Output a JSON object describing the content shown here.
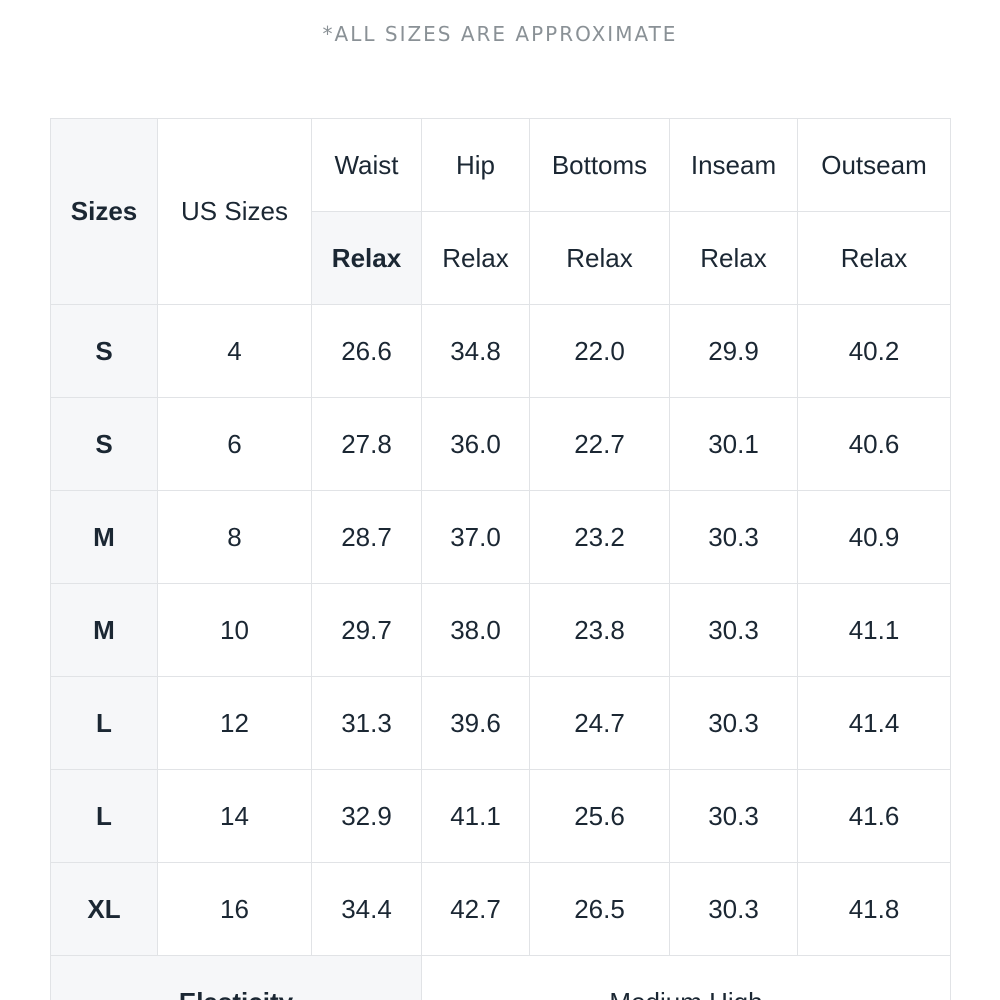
{
  "note": "*ALL SIZES ARE APPROXIMATE",
  "table": {
    "header": {
      "sizes": "Sizes",
      "us_sizes": "US Sizes",
      "waist": "Waist",
      "hip": "Hip",
      "bottoms": "Bottoms",
      "inseam": "Inseam",
      "outseam": "Outseam"
    },
    "subheader": [
      "Relax",
      "Relax",
      "Relax",
      "Relax",
      "Relax"
    ],
    "rows": [
      {
        "size": "S",
        "us": "4",
        "waist": "26.6",
        "hip": "34.8",
        "bottoms": "22.0",
        "inseam": "29.9",
        "outseam": "40.2"
      },
      {
        "size": "S",
        "us": "6",
        "waist": "27.8",
        "hip": "36.0",
        "bottoms": "22.7",
        "inseam": "30.1",
        "outseam": "40.6"
      },
      {
        "size": "M",
        "us": "8",
        "waist": "28.7",
        "hip": "37.0",
        "bottoms": "23.2",
        "inseam": "30.3",
        "outseam": "40.9"
      },
      {
        "size": "M",
        "us": "10",
        "waist": "29.7",
        "hip": "38.0",
        "bottoms": "23.8",
        "inseam": "30.3",
        "outseam": "41.1"
      },
      {
        "size": "L",
        "us": "12",
        "waist": "31.3",
        "hip": "39.6",
        "bottoms": "24.7",
        "inseam": "30.3",
        "outseam": "41.4"
      },
      {
        "size": "L",
        "us": "14",
        "waist": "32.9",
        "hip": "41.1",
        "bottoms": "25.6",
        "inseam": "30.3",
        "outseam": "41.6"
      },
      {
        "size": "XL",
        "us": "16",
        "waist": "34.4",
        "hip": "42.7",
        "bottoms": "26.5",
        "inseam": "30.3",
        "outseam": "41.8"
      }
    ],
    "footer": {
      "label": "Elasticity",
      "value": "Medium High"
    }
  }
}
